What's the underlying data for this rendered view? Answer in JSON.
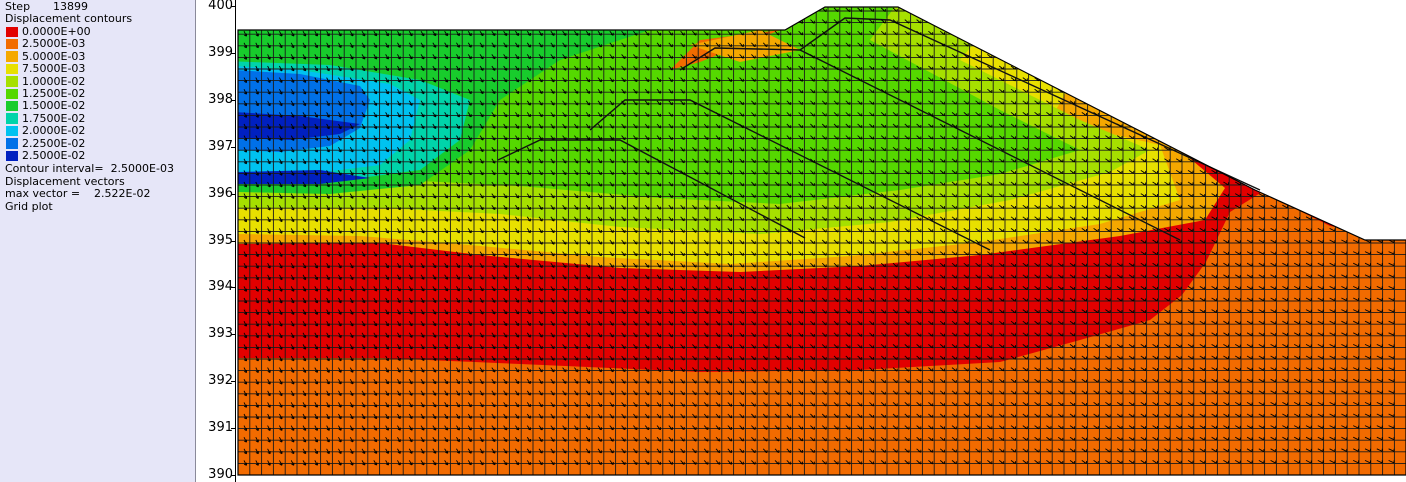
{
  "header": {
    "step_label": "Step",
    "step_value": "13899",
    "contours_title": "Displacement contours"
  },
  "legend": [
    {
      "value": "0.0000E+00",
      "color": "#e20000"
    },
    {
      "value": "2.5000E-03",
      "color": "#f26b00"
    },
    {
      "value": "5.0000E-03",
      "color": "#f5a800"
    },
    {
      "value": "7.5000E-03",
      "color": "#e8e000"
    },
    {
      "value": "1.0000E-02",
      "color": "#a6e000"
    },
    {
      "value": "1.2500E-02",
      "color": "#55d800"
    },
    {
      "value": "1.5000E-02",
      "color": "#18cc2c"
    },
    {
      "value": "1.7500E-02",
      "color": "#00d4aa"
    },
    {
      "value": "2.0000E-02",
      "color": "#00c2f0"
    },
    {
      "value": "2.2500E-02",
      "color": "#0070e8"
    },
    {
      "value": "2.5000E-02",
      "color": "#0020c0"
    }
  ],
  "footer": {
    "interval_line": "Contour interval=  2.5000E-03",
    "vectors_title": "Displacement vectors",
    "max_vector_line": "max vector =    2.522E-02",
    "grid_line": "Grid plot"
  },
  "chart_data": {
    "type": "heatmap",
    "ylim": [
      390,
      400
    ],
    "y_ticks": [
      "400",
      "399",
      "398",
      "397",
      "396",
      "395",
      "394",
      "393",
      "392",
      "391",
      "390"
    ],
    "grid_on": true,
    "contour_interval": 0.0025,
    "max_vector": 0.02522
  }
}
